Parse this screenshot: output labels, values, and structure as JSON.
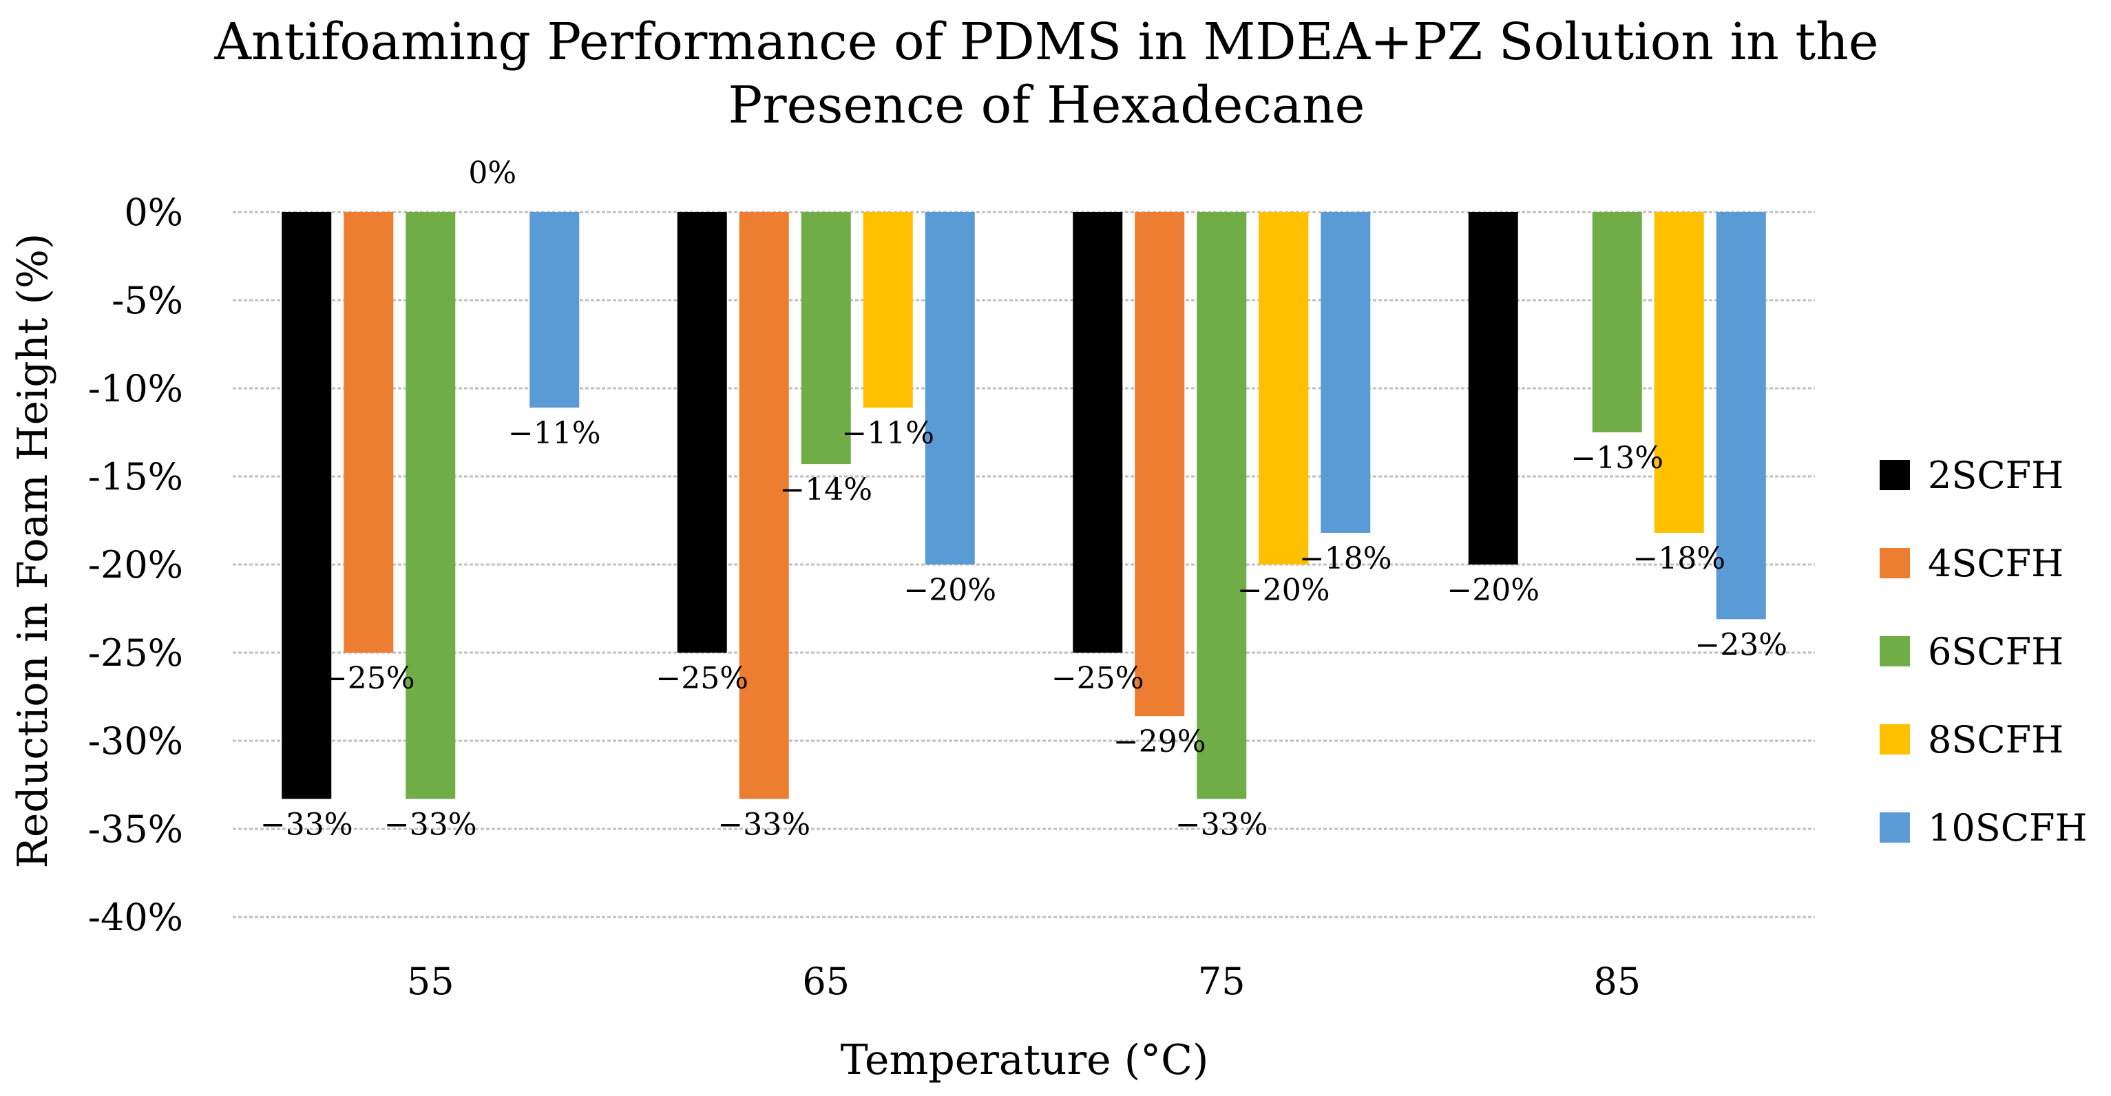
{
  "chart_data": {
    "type": "bar",
    "title": "Antifoaming Performance of PDMS in MDEA+PZ Solution in the Presence of Hexadecane",
    "title_lines": [
      "Antifoaming Performance of PDMS in MDEA+PZ Solution in the",
      "Presence of Hexadecane"
    ],
    "xlabel": "Temperature (°C)",
    "ylabel": "Reduction in Foam Height (%)",
    "categories": [
      "55",
      "65",
      "75",
      "85"
    ],
    "ylim": [
      -40,
      0
    ],
    "yticks": [
      0,
      -5,
      -10,
      -15,
      -20,
      -25,
      -30,
      -35,
      -40
    ],
    "ytick_labels": [
      "0%",
      "-5%",
      "-10%",
      "-15%",
      "-20%",
      "-25%",
      "-30%",
      "-35%",
      "-40%"
    ],
    "grid": true,
    "legend_position": "right",
    "series": [
      {
        "name": "2SCFH",
        "color": "#000000",
        "values": [
          -33.3,
          -25,
          -25,
          -20
        ],
        "labels": [
          "−33%",
          "−25%",
          "−25%",
          "−20%"
        ]
      },
      {
        "name": "4SCFH",
        "color": "#ED7D31",
        "values": [
          -25,
          -33.3,
          -28.6,
          0
        ],
        "labels": [
          "−25%",
          "−33%",
          "−29%",
          ""
        ]
      },
      {
        "name": "6SCFH",
        "color": "#70AD47",
        "values": [
          -33.3,
          -14.3,
          -33.3,
          -12.5
        ],
        "labels": [
          "−33%",
          "−14%",
          "−33%",
          "−13%"
        ]
      },
      {
        "name": "8SCFH",
        "color": "#FFC000",
        "values": [
          0,
          -11.1,
          -20,
          -18.2
        ],
        "labels": [
          "0%",
          "−11%",
          "−20%",
          "−18%"
        ]
      },
      {
        "name": "10SCFH",
        "color": "#5B9BD5",
        "values": [
          -11.1,
          -20,
          -18.2,
          -23.1
        ],
        "labels": [
          "−11%",
          "−20%",
          "−18%",
          "−23%"
        ]
      }
    ]
  }
}
